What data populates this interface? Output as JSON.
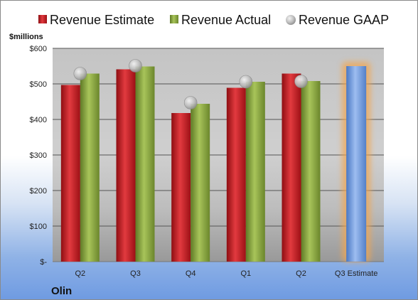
{
  "company": "Olin",
  "chart_data": {
    "type": "bar",
    "unit_label": "$millions",
    "categories": [
      "Q2",
      "Q3",
      "Q4",
      "Q1",
      "Q2",
      "Q3 Estimate"
    ],
    "series": [
      {
        "name": "Revenue Estimate",
        "kind": "bar",
        "color": "#c8161d",
        "values": [
          497,
          541,
          418,
          489,
          529,
          null
        ]
      },
      {
        "name": "Revenue Actual",
        "kind": "bar",
        "color": "#8aa63e",
        "values": [
          529,
          549,
          444,
          506,
          508,
          null
        ]
      },
      {
        "name": "Revenue GAAP",
        "kind": "marker",
        "color": "#c0c0c0",
        "values": [
          529,
          551,
          447,
          506,
          507,
          null
        ]
      }
    ],
    "projection": {
      "category": "Q3 Estimate",
      "value": 550,
      "color": "#6f9be0",
      "glow": "#f2a650"
    },
    "ylim": [
      0,
      600
    ],
    "yticks": [
      0,
      100,
      200,
      300,
      400,
      500,
      600
    ],
    "ytick_labels": [
      "$-",
      "$100",
      "$200",
      "$300",
      "$400",
      "$500",
      "$600"
    ],
    "legend_placement": "top",
    "grid": true
  }
}
